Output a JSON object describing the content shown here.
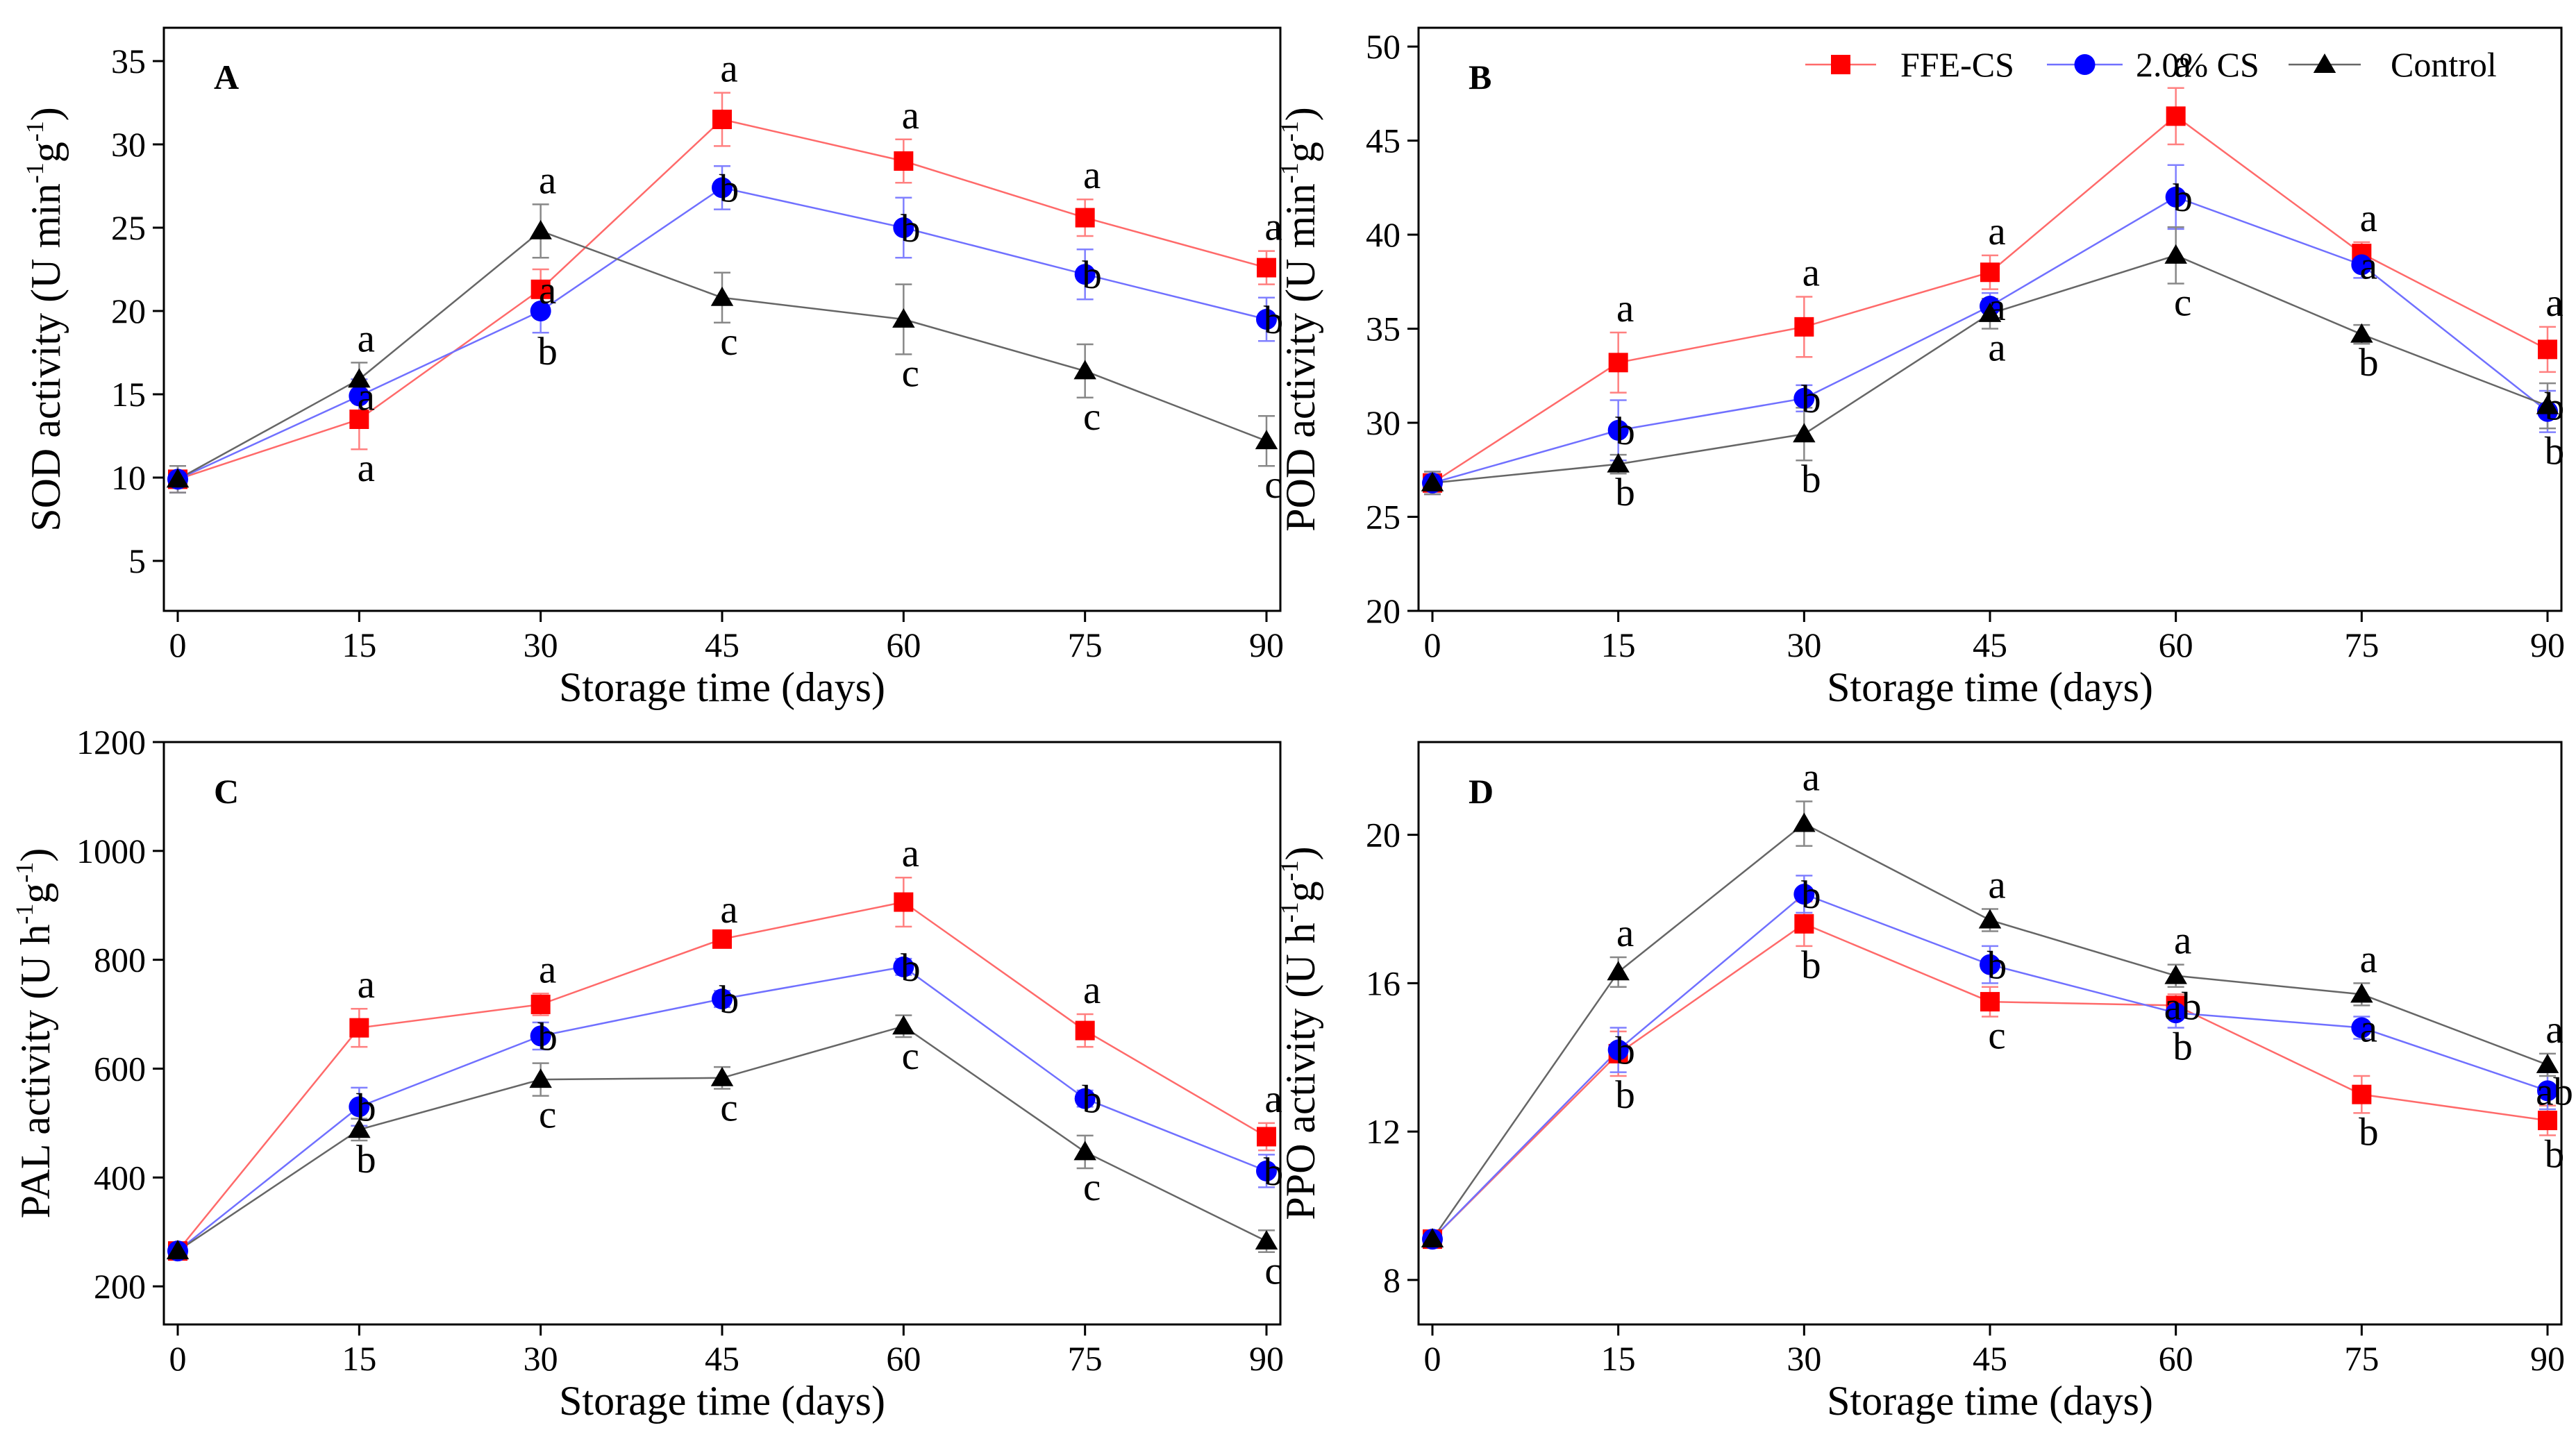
{
  "legend": [
    {
      "name": "FFE-CS",
      "color": "#ff0000",
      "marker": "square-icon"
    },
    {
      "name": "2.0% CS",
      "color": "#0000ff",
      "marker": "circle-icon"
    },
    {
      "name": "Control",
      "color": "#000000",
      "marker": "triangle-icon"
    }
  ],
  "chart_data": [
    {
      "type": "line",
      "panel": "A",
      "xlabel": "Storage time (days)",
      "ylabel_parts": {
        "prefix": "SOD activity (U min",
        "sup1": "-1",
        "middle": "g",
        "sup2": "-1",
        "suffix": ")"
      },
      "x": [
        0,
        15,
        30,
        45,
        60,
        75,
        90
      ],
      "xlim": [
        0,
        90
      ],
      "ylim": [
        2,
        37
      ],
      "yticks": [
        5,
        10,
        15,
        20,
        25,
        30,
        35
      ],
      "series": [
        {
          "name": "FFE-CS",
          "values": [
            9.9,
            13.5,
            21.3,
            31.5,
            29.0,
            25.6,
            22.6
          ],
          "errors": [
            0.8,
            1.8,
            1.2,
            1.6,
            1.3,
            1.1,
            1.0
          ],
          "letters": [
            "",
            "a",
            "a",
            "a",
            "a",
            "a",
            "a"
          ]
        },
        {
          "name": "2.0% CS",
          "values": [
            9.9,
            14.9,
            20.0,
            27.4,
            25.0,
            22.2,
            19.5
          ],
          "errors": [
            0.8,
            1.0,
            1.3,
            1.3,
            1.8,
            1.5,
            1.3
          ],
          "letters": [
            "",
            "a",
            "b",
            "b",
            "b",
            "b",
            "b"
          ]
        },
        {
          "name": "Control",
          "values": [
            9.9,
            15.9,
            24.8,
            20.8,
            19.5,
            16.4,
            12.2
          ],
          "errors": [
            0.8,
            1.0,
            1.6,
            1.5,
            2.1,
            1.6,
            1.5
          ],
          "letters": [
            "",
            "a",
            "a",
            "c",
            "c",
            "c",
            "c"
          ]
        }
      ]
    },
    {
      "type": "line",
      "panel": "B",
      "xlabel": "Storage time (days)",
      "ylabel_parts": {
        "prefix": "POD activity (U min",
        "sup1": "-1",
        "middle": "g",
        "sup2": "-1",
        "suffix": ")"
      },
      "x": [
        0,
        15,
        30,
        45,
        60,
        75,
        90
      ],
      "xlim": [
        0,
        90
      ],
      "ylim": [
        20,
        51
      ],
      "yticks": [
        20,
        25,
        30,
        35,
        40,
        45,
        50
      ],
      "series": [
        {
          "name": "FFE-CS",
          "values": [
            26.8,
            33.2,
            35.1,
            38.0,
            46.3,
            39.0,
            33.9
          ],
          "errors": [
            0.6,
            1.6,
            1.6,
            0.9,
            1.5,
            0.6,
            1.2
          ],
          "letters": [
            "",
            "a",
            "a",
            "a",
            "a",
            "a",
            "a"
          ]
        },
        {
          "name": "2.0% CS",
          "values": [
            26.8,
            29.6,
            31.3,
            36.2,
            42.0,
            38.4,
            30.6
          ],
          "errors": [
            0.6,
            1.6,
            0.7,
            0.7,
            1.7,
            0.7,
            1.1
          ],
          "letters": [
            "",
            "b",
            "b",
            "a",
            "b",
            "a",
            "b"
          ]
        },
        {
          "name": "Control",
          "values": [
            26.8,
            27.8,
            29.4,
            35.8,
            38.9,
            34.7,
            30.9
          ],
          "errors": [
            0.6,
            0.5,
            1.4,
            0.8,
            1.5,
            0.5,
            1.2
          ],
          "letters": [
            "",
            "b",
            "b",
            "a",
            "c",
            "b",
            "b"
          ]
        }
      ]
    },
    {
      "type": "line",
      "panel": "C",
      "xlabel": "Storage time (days)",
      "ylabel_parts": {
        "prefix": "PAL activity  (U h",
        "sup1": "-1",
        "middle": "g",
        "sup2": "-1",
        "suffix": ")"
      },
      "x": [
        0,
        15,
        30,
        45,
        60,
        75,
        90
      ],
      "xlim": [
        0,
        90
      ],
      "ylim": [
        130,
        1200
      ],
      "yticks": [
        200,
        400,
        600,
        800,
        1000,
        1200
      ],
      "series": [
        {
          "name": "FFE-CS",
          "values": [
            265,
            675,
            718,
            838,
            906,
            670,
            475
          ],
          "errors": [
            12,
            35,
            20,
            10,
            45,
            30,
            25
          ],
          "letters": [
            "",
            "a",
            "a",
            "a",
            "a",
            "a",
            "a"
          ]
        },
        {
          "name": "2.0% CS",
          "values": [
            265,
            530,
            660,
            728,
            787,
            545,
            412
          ],
          "errors": [
            12,
            35,
            25,
            15,
            15,
            15,
            30
          ],
          "letters": [
            "",
            "b",
            "b",
            "b",
            "b",
            "b",
            "b"
          ]
        },
        {
          "name": "Control",
          "values": [
            265,
            488,
            580,
            583,
            678,
            447,
            283
          ],
          "errors": [
            12,
            20,
            30,
            20,
            20,
            30,
            20
          ],
          "letters": [
            "",
            "b",
            "c",
            "c",
            "c",
            "c",
            "c"
          ]
        }
      ]
    },
    {
      "type": "line",
      "panel": "D",
      "xlabel": "Storage time (days)",
      "ylabel_parts": {
        "prefix": "PPO activity (U h",
        "sup1": "-1",
        "middle": "g",
        "sup2": "-1",
        "suffix": ")"
      },
      "x": [
        0,
        15,
        30,
        45,
        60,
        75,
        90
      ],
      "xlim": [
        0,
        90
      ],
      "ylim": [
        6.8,
        22.5
      ],
      "yticks": [
        8,
        12,
        16,
        20
      ],
      "series": [
        {
          "name": "FFE-CS",
          "values": [
            9.1,
            14.1,
            17.6,
            15.5,
            15.4,
            13.0,
            12.3
          ],
          "errors": [
            0.2,
            0.6,
            0.6,
            0.4,
            0.3,
            0.5,
            0.4
          ],
          "letters": [
            "",
            "b",
            "b",
            "c",
            "ab",
            "b",
            "b"
          ]
        },
        {
          "name": "2.0% CS",
          "values": [
            9.1,
            14.2,
            18.4,
            16.5,
            15.2,
            14.8,
            13.1
          ],
          "errors": [
            0.2,
            0.6,
            0.5,
            0.5,
            0.4,
            0.3,
            0.5
          ],
          "letters": [
            "",
            "b",
            "b",
            "b",
            "b",
            "a",
            "ab"
          ]
        },
        {
          "name": "Control",
          "values": [
            9.1,
            16.3,
            20.3,
            17.7,
            16.2,
            15.7,
            13.8
          ],
          "errors": [
            0.2,
            0.4,
            0.6,
            0.3,
            0.3,
            0.3,
            0.3
          ],
          "letters": [
            "",
            "a",
            "a",
            "a",
            "a",
            "a",
            "a"
          ]
        }
      ]
    }
  ]
}
